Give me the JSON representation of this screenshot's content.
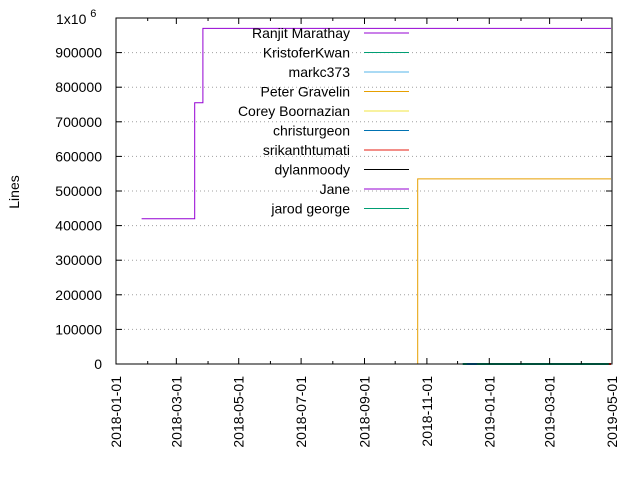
{
  "chart_data": {
    "type": "line",
    "title": "",
    "xlabel": "",
    "ylabel": "Lines",
    "y_exponent_label": {
      "base": "1x10",
      "exp": "6"
    },
    "xlim": [
      "2018-01-01",
      "2019-05-01"
    ],
    "ylim": [
      0,
      1000000
    ],
    "grid": "horizontal dotted lines",
    "legend_position": "top-right",
    "x_ticks": [
      "2018-01-01",
      "2018-03-01",
      "2018-05-01",
      "2018-07-01",
      "2018-09-01",
      "2018-11-01",
      "2019-01-01",
      "2019-03-01",
      "2019-05-01"
    ],
    "y_ticks": [
      {
        "value": 0,
        "label": "0"
      },
      {
        "value": 100000,
        "label": "100000"
      },
      {
        "value": 200000,
        "label": "200000"
      },
      {
        "value": 300000,
        "label": "300000"
      },
      {
        "value": 400000,
        "label": "400000"
      },
      {
        "value": 500000,
        "label": "500000"
      },
      {
        "value": 600000,
        "label": "600000"
      },
      {
        "value": 700000,
        "label": "700000"
      },
      {
        "value": 800000,
        "label": "800000"
      },
      {
        "value": 900000,
        "label": "900000"
      }
    ],
    "series": [
      {
        "name": "Ranjit Marathay",
        "color": "#9400d3",
        "step": true,
        "points": [
          [
            "2018-01-26",
            420000
          ],
          [
            "2018-03-19",
            420000
          ],
          [
            "2018-03-19",
            755000
          ],
          [
            "2018-03-27",
            755000
          ],
          [
            "2018-03-27",
            970000
          ],
          [
            "2019-04-30",
            970000
          ]
        ]
      },
      {
        "name": "KristoferKwan",
        "color": "#009e73",
        "step": true,
        "points": [
          [
            "2018-12-06",
            0
          ],
          [
            "2019-04-25",
            0
          ]
        ]
      },
      {
        "name": "markc373",
        "color": "#56b4e9",
        "step": true,
        "points": []
      },
      {
        "name": "Peter Gravelin",
        "color": "#e69f00",
        "step": true,
        "points": [
          [
            "2018-10-23",
            0
          ],
          [
            "2018-10-23",
            535000
          ],
          [
            "2019-04-30",
            535000
          ]
        ]
      },
      {
        "name": "Corey Boornazian",
        "color": "#f0e442",
        "step": true,
        "points": []
      },
      {
        "name": "christurgeon",
        "color": "#0072b2",
        "step": true,
        "points": [
          [
            "2018-12-10",
            0
          ],
          [
            "2019-04-20",
            0
          ]
        ]
      },
      {
        "name": "srikanthtumati",
        "color": "#e51e10",
        "step": true,
        "points": [
          [
            "2019-04-22",
            0
          ],
          [
            "2019-04-30",
            0
          ]
        ]
      },
      {
        "name": "dylanmoody",
        "color": "#000000",
        "step": true,
        "points": []
      },
      {
        "name": "Jane",
        "color": "#9400d3",
        "step": true,
        "points": []
      },
      {
        "name": "jarod george",
        "color": "#009e73",
        "step": true,
        "points": [
          [
            "2018-12-20",
            0
          ],
          [
            "2019-04-28",
            0
          ]
        ]
      }
    ]
  }
}
